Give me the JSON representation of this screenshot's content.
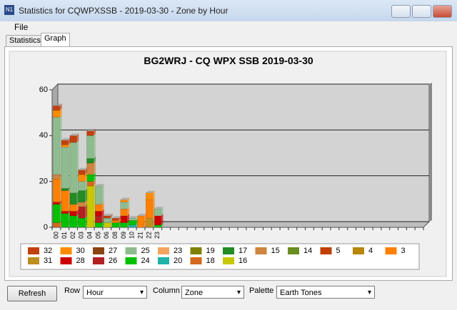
{
  "window": {
    "title": "Statistics for CQWPXSSB - 2019-03-30 - Zone by Hour",
    "menu": "File",
    "tabs": [
      "Statistics",
      "Graph"
    ],
    "controls": {
      "refresh": "Refresh",
      "row_label": "Row",
      "row_value": "Hour",
      "column_label": "Column",
      "column_value": "Zone",
      "palette_label": "Palette",
      "palette_value": "Earth Tones"
    }
  },
  "chart_data": {
    "type": "bar",
    "stacked": true,
    "title": "BG2WRJ - CQ WPX SSB 2019-03-30",
    "categories": [
      "00",
      "01",
      "02",
      "03",
      "04",
      "05",
      "06",
      "08",
      "09",
      "10",
      "21",
      "22",
      "23"
    ],
    "ylim": [
      0,
      60
    ],
    "yticks": [
      0,
      20,
      40,
      60
    ],
    "grid": true,
    "series": [
      {
        "name": "32",
        "color": "#c2410f",
        "values": [
          2,
          2,
          3,
          2,
          2,
          0,
          1,
          1,
          0,
          0,
          0,
          0,
          0
        ]
      },
      {
        "name": "30",
        "color": "#ff8c00",
        "values": [
          3,
          1,
          0,
          3,
          0,
          0,
          0,
          0,
          1,
          0,
          0,
          3,
          0
        ]
      },
      {
        "name": "27",
        "color": "#8b4513",
        "values": [
          0,
          0,
          0,
          0,
          0,
          0,
          0,
          0,
          0,
          0,
          0,
          0,
          0
        ]
      },
      {
        "name": "25",
        "color": "#8fbc8f",
        "values": [
          25,
          18,
          22,
          4,
          10,
          8,
          2,
          0,
          3,
          1,
          0,
          0,
          3
        ]
      },
      {
        "name": "23",
        "color": "#f4a460",
        "values": [
          0,
          0,
          0,
          0,
          0,
          0,
          0,
          0,
          0,
          0,
          0,
          0,
          0
        ]
      },
      {
        "name": "19",
        "color": "#808000",
        "values": [
          0,
          0,
          0,
          0,
          0,
          0,
          0,
          0,
          0,
          0,
          0,
          0,
          0
        ]
      },
      {
        "name": "17",
        "color": "#228b22",
        "values": [
          0,
          1,
          5,
          5,
          2,
          0,
          0,
          0,
          0,
          0,
          0,
          0,
          0
        ]
      },
      {
        "name": "15",
        "color": "#cd853f",
        "values": [
          2,
          0,
          0,
          2,
          5,
          0,
          0,
          0,
          0,
          0,
          0,
          0,
          0
        ]
      },
      {
        "name": "14",
        "color": "#6b8e23",
        "values": [
          0,
          0,
          0,
          0,
          0,
          0,
          0,
          0,
          0,
          0,
          0,
          0,
          0
        ]
      },
      {
        "name": "5",
        "color": "#c04000",
        "values": [
          0,
          0,
          0,
          0,
          0,
          0,
          0,
          0,
          0,
          0,
          0,
          0,
          0
        ]
      },
      {
        "name": "4",
        "color": "#b8860b",
        "values": [
          0,
          0,
          0,
          0,
          0,
          0,
          0,
          0,
          0,
          0,
          0,
          0,
          0
        ]
      },
      {
        "name": "3",
        "color": "#ff7f00",
        "values": [
          10,
          9,
          3,
          0,
          0,
          3,
          0,
          1,
          3,
          0,
          5,
          8,
          0
        ]
      },
      {
        "name": "31",
        "color": "#bc8f1f",
        "values": [
          0,
          0,
          0,
          0,
          0,
          0,
          0,
          0,
          0,
          0,
          0,
          4,
          0
        ]
      },
      {
        "name": "28",
        "color": "#cc0000",
        "values": [
          1,
          1,
          2,
          0,
          0,
          2,
          0,
          0,
          3,
          0,
          0,
          0,
          4
        ]
      },
      {
        "name": "26",
        "color": "#b22222",
        "values": [
          0,
          0,
          0,
          5,
          0,
          3,
          0,
          0,
          0,
          0,
          0,
          0,
          0
        ]
      },
      {
        "name": "24",
        "color": "#00c000",
        "values": [
          8,
          6,
          5,
          4,
          3,
          2,
          0,
          2,
          2,
          2,
          0,
          0,
          1
        ]
      },
      {
        "name": "20",
        "color": "#20b2aa",
        "values": [
          0,
          0,
          0,
          0,
          0,
          0,
          0,
          0,
          0,
          1,
          0,
          0,
          0
        ]
      },
      {
        "name": "18",
        "color": "#d2691e",
        "values": [
          2,
          0,
          0,
          0,
          2,
          0,
          0,
          0,
          0,
          0,
          0,
          0,
          0
        ]
      },
      {
        "name": "16",
        "color": "#c8c800",
        "values": [
          0,
          0,
          0,
          0,
          18,
          0,
          2,
          0,
          0,
          0,
          0,
          0,
          0
        ]
      }
    ]
  }
}
